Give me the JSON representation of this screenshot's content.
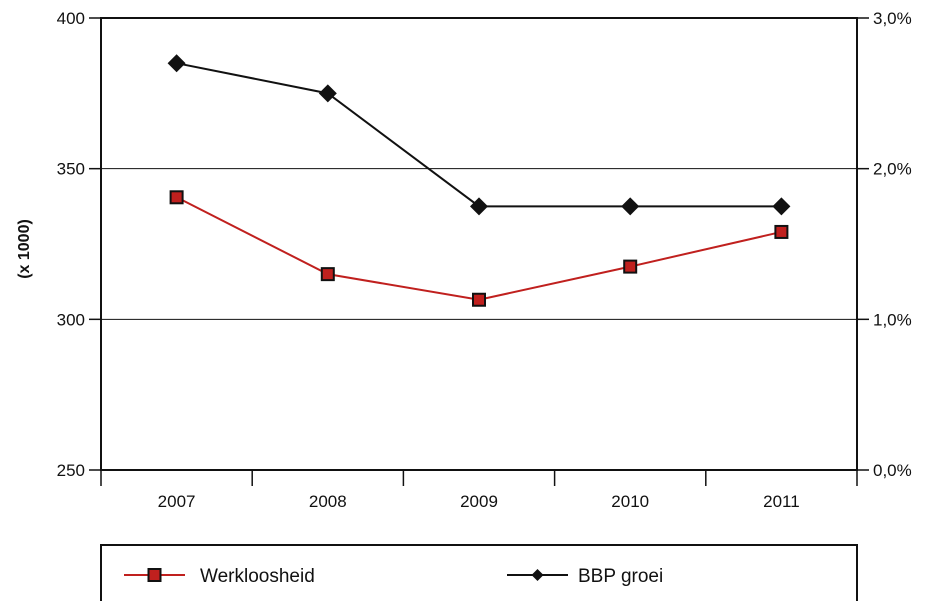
{
  "chart_data": {
    "type": "line",
    "categories": [
      "2007",
      "2008",
      "2009",
      "2010",
      "2011"
    ],
    "y_left": {
      "label": "(x 1000)",
      "range": [
        250,
        400
      ],
      "ticks": [
        250,
        300,
        350,
        400
      ],
      "tick_labels": [
        "250",
        "300",
        "350",
        "400"
      ]
    },
    "y_right": {
      "label": "",
      "range": [
        0.0,
        3.0
      ],
      "ticks": [
        0.0,
        1.0,
        2.0,
        3.0
      ],
      "tick_labels": [
        "0,0%",
        "1,0%",
        "2,0%",
        "3,0%"
      ]
    },
    "series": [
      {
        "name": "Werkloosheid",
        "axis": "left",
        "color": "#c0201e",
        "marker": "square",
        "values": [
          340.5,
          315,
          306.5,
          317.5,
          329
        ]
      },
      {
        "name": "BBP groei",
        "axis": "right",
        "color": "#111111",
        "marker": "diamond",
        "values": [
          2.7,
          2.5,
          1.75,
          1.75,
          1.75
        ]
      }
    ],
    "grid": "horizontal",
    "legend_position": "bottom"
  }
}
